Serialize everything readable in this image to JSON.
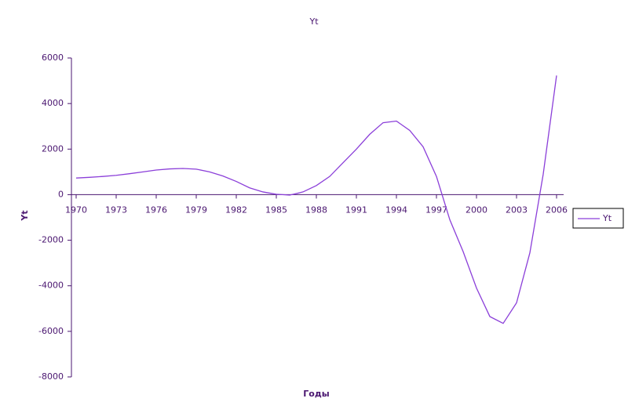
{
  "chart_data": {
    "type": "line",
    "title": "Yt",
    "x_label": "Годы",
    "y_label": "Yt",
    "x": [
      1970,
      1971,
      1972,
      1973,
      1974,
      1975,
      1976,
      1977,
      1978,
      1979,
      1980,
      1981,
      1982,
      1983,
      1984,
      1985,
      1986,
      1987,
      1988,
      1989,
      1990,
      1991,
      1992,
      1993,
      1994,
      1995,
      1996,
      1997,
      1998,
      1999,
      2000,
      2001,
      2002,
      2003,
      2004,
      2005,
      2006
    ],
    "series": [
      {
        "name": "Yt",
        "color": "#8b3fd9",
        "values": [
          730,
          760,
          800,
          850,
          920,
          1000,
          1080,
          1130,
          1150,
          1120,
          1000,
          820,
          580,
          300,
          120,
          20,
          -20,
          120,
          400,
          800,
          1400,
          2000,
          2650,
          3160,
          3230,
          2820,
          2100,
          800,
          -1100,
          -2500,
          -4100,
          -5350,
          -5650,
          -4750,
          -2550,
          900,
          5230
        ]
      }
    ],
    "xlim": [
      1970,
      2006
    ],
    "xticks": [
      1970,
      1973,
      1976,
      1979,
      1982,
      1985,
      1988,
      1991,
      1994,
      1997,
      2000,
      2003,
      2006
    ],
    "ylim": [
      -8000,
      6000
    ],
    "yticks": [
      -8000,
      -6000,
      -4000,
      -2000,
      0,
      2000,
      4000,
      6000
    ],
    "grid": false,
    "legend": "right"
  }
}
